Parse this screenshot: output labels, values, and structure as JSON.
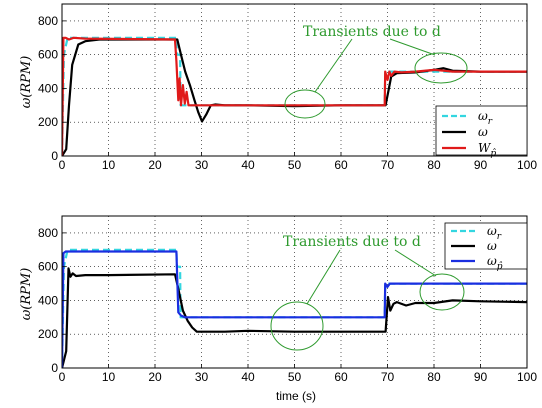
{
  "chart_data": [
    {
      "type": "line",
      "xlim": [
        0,
        100
      ],
      "ylim": [
        0,
        900
      ],
      "xticks": [
        0,
        10,
        20,
        30,
        40,
        50,
        60,
        70,
        80,
        90,
        100
      ],
      "yticks": [
        0,
        200,
        400,
        600,
        800
      ],
      "ylabel": "ω(RPM)",
      "xlabel": "",
      "grid": "dotted",
      "legend_position": "bottom-right",
      "annotation": "Transients due to d",
      "series": [
        {
          "name": "ωr",
          "color": "#33d6e0",
          "style": "dashed",
          "x": [
            0,
            0.4,
            1.2,
            24.6,
            24.7,
            25.4,
            25.5,
            69.4,
            69.5,
            100
          ],
          "y": [
            0,
            600,
            700,
            700,
            600,
            600,
            300,
            300,
            500,
            500
          ]
        },
        {
          "name": "ω",
          "color": "#000000",
          "style": "solid",
          "x": [
            0,
            0.9,
            1.5,
            2.2,
            3.5,
            5,
            8,
            24.3,
            24.8,
            25.6,
            26.5,
            27.5,
            28.5,
            29.3,
            30.1,
            31,
            32,
            33,
            35,
            40,
            50,
            60,
            69.4,
            69.6,
            70.3,
            70.8,
            72,
            76,
            80,
            82,
            84,
            90,
            100
          ],
          "y": [
            0,
            40,
            300,
            540,
            660,
            680,
            690,
            690,
            690,
            600,
            500,
            420,
            330,
            260,
            205,
            245,
            300,
            305,
            300,
            300,
            295,
            300,
            300,
            300,
            400,
            470,
            490,
            495,
            510,
            520,
            505,
            500,
            500
          ]
        },
        {
          "name": "Wp̂",
          "color": "#e01a1a",
          "style": "solid",
          "x": [
            0,
            0.3,
            0.8,
            1.5,
            2.5,
            5,
            24.3,
            24.6,
            25.0,
            25.3,
            25.6,
            26.0,
            26.4,
            26.8,
            27.2,
            28,
            30,
            40,
            50,
            60,
            69.4,
            69.5,
            70,
            70.4,
            70.8,
            71.5,
            73,
            76,
            80,
            82,
            84,
            90,
            100
          ],
          "y": [
            0,
            700,
            700,
            690,
            700,
            695,
            690,
            560,
            330,
            460,
            300,
            420,
            310,
            380,
            300,
            300,
            300,
            300,
            300,
            300,
            300,
            500,
            450,
            500,
            475,
            500,
            495,
            500,
            510,
            505,
            500,
            500,
            500
          ]
        }
      ],
      "highlights": [
        {
          "cx": 51,
          "cy": 300
        },
        {
          "cx": 81.5,
          "cy": 520
        }
      ]
    },
    {
      "type": "line",
      "xlim": [
        0,
        100
      ],
      "ylim": [
        0,
        900
      ],
      "xticks": [
        0,
        10,
        20,
        30,
        40,
        50,
        60,
        70,
        80,
        90,
        100
      ],
      "yticks": [
        0,
        200,
        400,
        600,
        800
      ],
      "ylabel": "ω(RPM)",
      "xlabel": "time (s)",
      "grid": "dotted",
      "legend_position": "top-right",
      "annotation": "Transients due to d",
      "series": [
        {
          "name": "ωr",
          "color": "#33d6e0",
          "style": "dashed",
          "x": [
            0,
            0.4,
            1.2,
            24.6,
            24.7,
            25.4,
            25.5,
            69.4,
            69.5,
            100
          ],
          "y": [
            0,
            600,
            700,
            700,
            600,
            600,
            300,
            300,
            500,
            500
          ]
        },
        {
          "name": "ω",
          "color": "#000000",
          "style": "solid",
          "x": [
            0,
            0.9,
            1.4,
            1.8,
            2.3,
            3,
            5,
            10,
            24.3,
            25.0,
            26,
            27,
            28,
            29,
            30,
            35,
            40,
            50,
            60,
            69.4,
            69.6,
            70.1,
            70.6,
            71.3,
            72,
            74,
            76,
            80,
            84,
            90,
            100
          ],
          "y": [
            0,
            100,
            590,
            540,
            560,
            545,
            550,
            550,
            555,
            470,
            340,
            280,
            240,
            215,
            215,
            215,
            220,
            215,
            215,
            215,
            215,
            420,
            340,
            380,
            390,
            370,
            385,
            385,
            400,
            395,
            390
          ]
        },
        {
          "name": "ωp̂",
          "color": "#1a2ee0",
          "style": "solid",
          "x": [
            0,
            0.3,
            0.8,
            1.5,
            5,
            24.3,
            24.6,
            25.0,
            25.6,
            26.5,
            30,
            40,
            50,
            60,
            69.4,
            69.5,
            70,
            70.5,
            71.5,
            75,
            80,
            90,
            100
          ],
          "y": [
            0,
            680,
            690,
            690,
            690,
            690,
            690,
            330,
            310,
            300,
            300,
            300,
            300,
            300,
            300,
            500,
            480,
            500,
            500,
            500,
            500,
            500,
            500
          ]
        }
      ],
      "highlights": [
        {
          "cx": 50,
          "cy": 230
        },
        {
          "cx": 81.5,
          "cy": 390
        }
      ]
    }
  ]
}
